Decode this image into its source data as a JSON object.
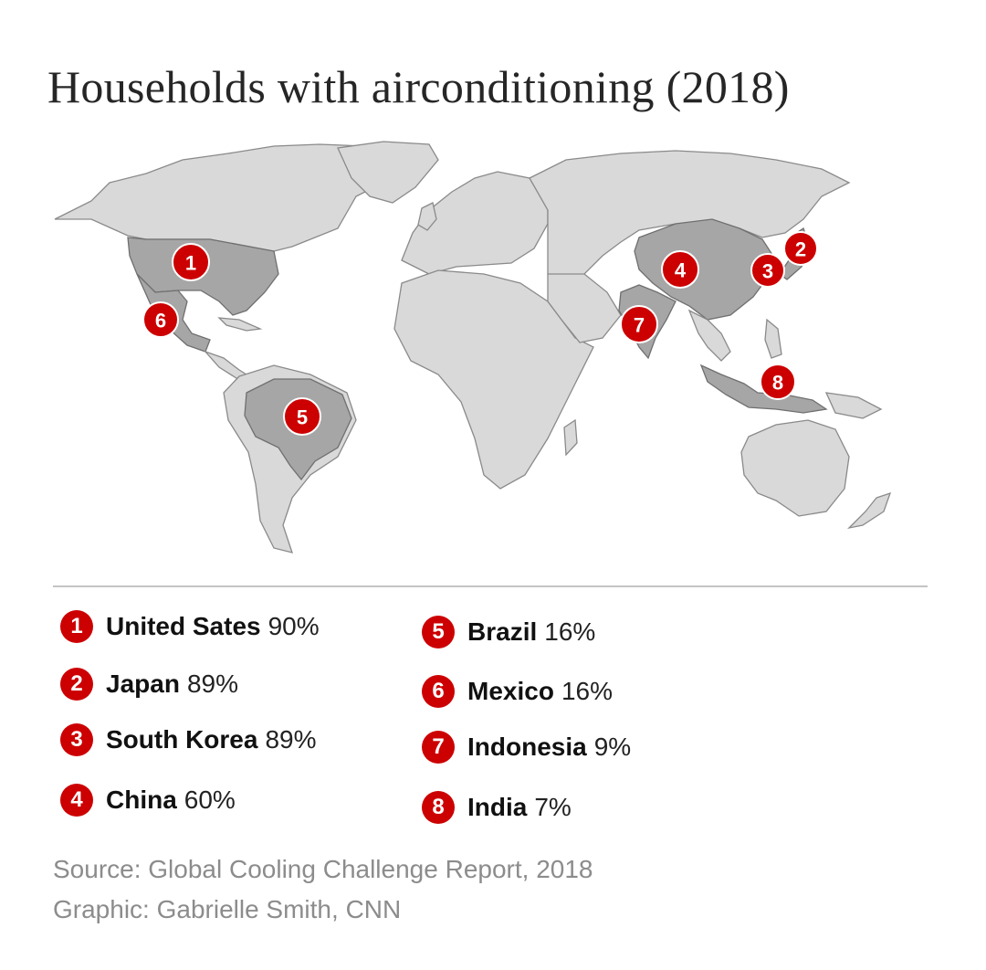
{
  "title": "Households with airconditioning (2018)",
  "legend": [
    {
      "number": "1",
      "country": "United Sates",
      "value": "90%"
    },
    {
      "number": "2",
      "country": "Japan",
      "value": "89%"
    },
    {
      "number": "3",
      "country": "South Korea",
      "value": "89%"
    },
    {
      "number": "4",
      "country": "China",
      "value": "60%"
    },
    {
      "number": "5",
      "country": "Brazil",
      "value": "16%"
    },
    {
      "number": "6",
      "country": "Mexico",
      "value": "16%"
    },
    {
      "number": "7",
      "country": "Indonesia",
      "value": "9%"
    },
    {
      "number": "8",
      "country": "India",
      "value": "7%"
    }
  ],
  "source": "Source: Global Cooling Challenge Report, 2018",
  "credit": "Graphic: Gabrielle Smith, CNN",
  "colors": {
    "accent": "#cc0000",
    "land": "#d9d9d9",
    "highlight": "#a6a6a6",
    "muted_text": "#8c8c8c"
  }
}
